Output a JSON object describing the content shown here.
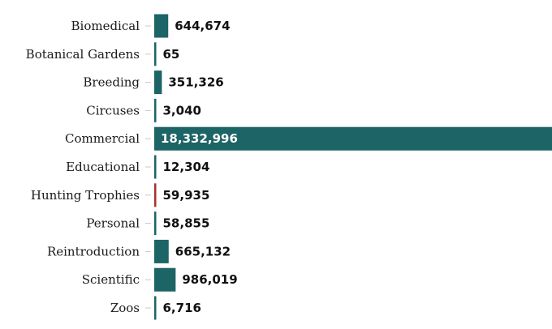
{
  "chart_data": {
    "type": "bar",
    "orientation": "horizontal",
    "title": "",
    "xlabel": "",
    "ylabel": "",
    "categories": [
      "Biomedical",
      "Botanical Gardens",
      "Breeding",
      "Circuses",
      "Commercial",
      "Educational",
      "Hunting Trophies",
      "Personal",
      "Reintroduction",
      "Scientific",
      "Zoos"
    ],
    "values": [
      644674,
      65,
      351326,
      3040,
      18332996,
      12304,
      59935,
      58855,
      665132,
      986019,
      6716
    ],
    "value_labels": [
      "644,674",
      "65",
      "351,326",
      "3,040",
      "18,332,996",
      "12,304",
      "59,935",
      "58,855",
      "665,132",
      "986,019",
      "6,716"
    ],
    "bar_colors": [
      "#1d6466",
      "#1d6466",
      "#1d6466",
      "#1d6466",
      "#1d6466",
      "#1d6466",
      "#a83232",
      "#1d6466",
      "#1d6466",
      "#1d6466",
      "#1d6466"
    ],
    "xlim": [
      0,
      18332996
    ],
    "grid": false,
    "legend": "none"
  }
}
